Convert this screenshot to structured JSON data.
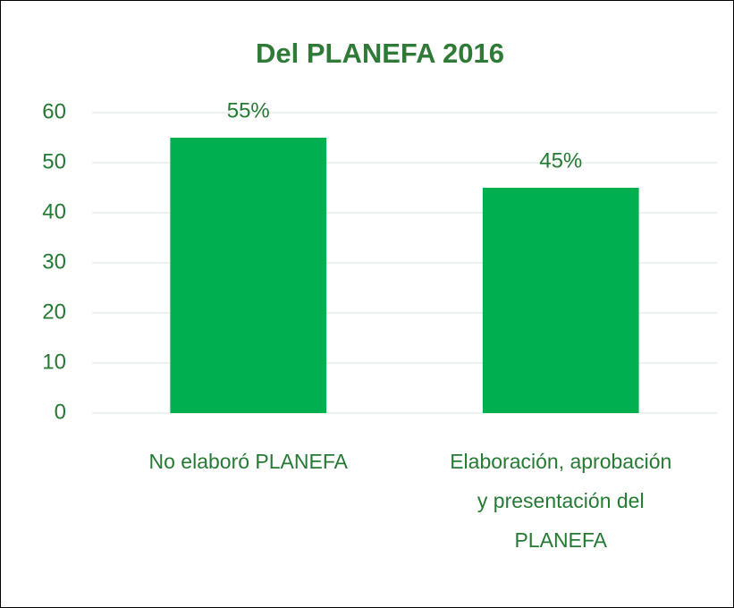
{
  "chart_data": {
    "type": "bar",
    "title": "Del PLANEFA 2016",
    "categories": [
      "No elaboró PLANEFA",
      "Elaboración, aprobación y presentación del PLANEFA"
    ],
    "values": [
      55,
      45
    ],
    "value_labels": [
      "55%",
      "45%"
    ],
    "color": "#00b050",
    "ylim": [
      0,
      60
    ],
    "yticks": [
      0,
      10,
      20,
      30,
      40,
      50,
      60
    ],
    "grid": true
  }
}
